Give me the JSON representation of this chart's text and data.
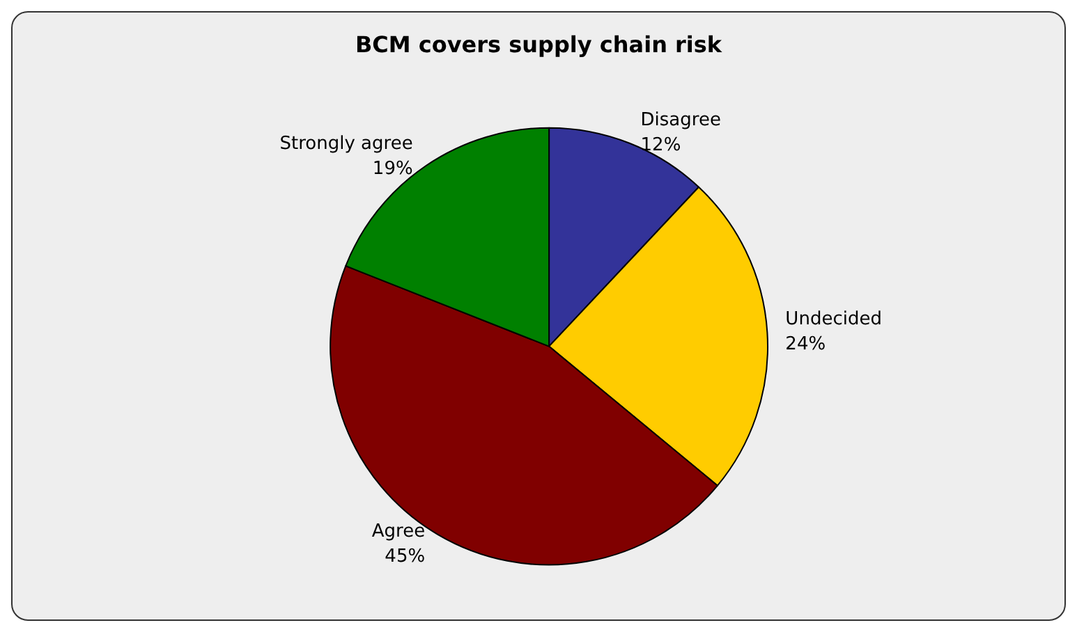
{
  "chart_data": {
    "type": "pie",
    "title": "BCM covers supply chain risk",
    "categories": [
      "Disagree",
      "Undecided",
      "Agree",
      "Strongly agree"
    ],
    "values": [
      12,
      24,
      45,
      19
    ],
    "colors": [
      "#333399",
      "#ffcc00",
      "#800000",
      "#008000"
    ],
    "value_labels": [
      "12%",
      "24%",
      "45%",
      "19%"
    ],
    "legend": false
  }
}
